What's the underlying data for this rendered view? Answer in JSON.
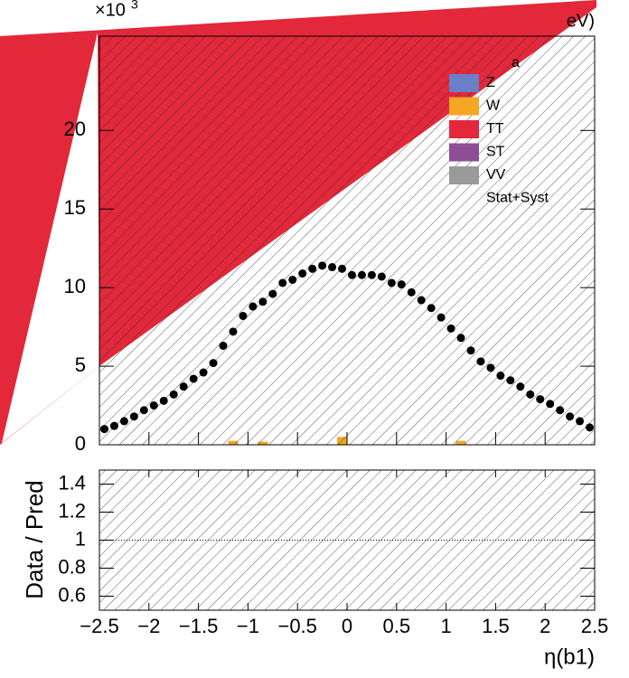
{
  "chart_data": {
    "type": "scatter",
    "y_multiplier": "×10",
    "y_multiplier_exp": "3",
    "corner_text": "eV)",
    "legend_fragment": "a",
    "x": [
      -2.45,
      -2.35,
      -2.25,
      -2.15,
      -2.05,
      -1.95,
      -1.85,
      -1.75,
      -1.65,
      -1.55,
      -1.45,
      -1.35,
      -1.25,
      -1.15,
      -1.05,
      -0.95,
      -0.85,
      -0.75,
      -0.65,
      -0.55,
      -0.45,
      -0.35,
      -0.25,
      -0.15,
      -0.05,
      0.05,
      0.15,
      0.25,
      0.35,
      0.45,
      0.55,
      0.65,
      0.75,
      0.85,
      0.95,
      1.05,
      1.15,
      1.25,
      1.35,
      1.45,
      1.55,
      1.65,
      1.75,
      1.85,
      1.95,
      2.05,
      2.15,
      2.25,
      2.35,
      2.45
    ],
    "values": [
      1.0,
      1.2,
      1.5,
      1.8,
      2.2,
      2.5,
      2.8,
      3.2,
      3.7,
      4.2,
      4.6,
      5.2,
      6.3,
      7.2,
      8.2,
      8.8,
      9.1,
      9.6,
      10.3,
      10.5,
      10.9,
      11.2,
      11.4,
      11.3,
      11.2,
      10.8,
      10.8,
      10.8,
      10.7,
      10.3,
      10.2,
      9.7,
      9.2,
      8.7,
      8.1,
      7.4,
      6.8,
      6.0,
      5.3,
      4.9,
      4.4,
      4.1,
      3.7,
      3.2,
      2.9,
      2.6,
      2.2,
      1.8,
      1.5,
      1.1
    ],
    "marker_color": "#000000",
    "w_values": [
      0,
      0,
      0,
      0,
      0,
      0,
      0,
      0,
      0,
      0,
      0,
      0,
      0,
      0.25,
      0,
      0,
      0.2,
      0,
      0,
      0,
      0,
      0,
      0,
      0,
      0.5,
      0,
      0,
      0,
      0,
      0,
      0,
      0,
      0,
      0,
      0,
      0,
      0.25,
      0,
      0,
      0,
      0,
      0,
      0,
      0,
      0,
      0,
      0,
      0,
      0,
      0
    ],
    "w_color": "#f5a623",
    "xlim": [
      -2.5,
      2.5
    ],
    "ylim": [
      0,
      26
    ],
    "yticks": [
      0,
      5,
      10,
      15,
      20
    ],
    "legend": [
      {
        "label": "Z",
        "color": "#6a7fc8"
      },
      {
        "label": "W",
        "color": "#f5a623"
      },
      {
        "label": "TT",
        "color": "#e2283a"
      },
      {
        "label": "ST",
        "color": "#8e4e96"
      },
      {
        "label": "VV",
        "color": "#9a9a9a"
      },
      {
        "label": "Stat+Syst",
        "color": "none"
      }
    ],
    "ratio": {
      "ylabel": "Data / Pred",
      "ylim": [
        0.5,
        1.5
      ],
      "yticks": [
        0.6,
        0.8,
        1,
        1.2,
        1.4
      ],
      "ref_line": 1
    },
    "xticks": [
      {
        "value": -2.5,
        "label": "−2.5"
      },
      {
        "value": -2,
        "label": "−2"
      },
      {
        "value": -1.5,
        "label": "−1.5"
      },
      {
        "value": -1,
        "label": "−1"
      },
      {
        "value": -0.5,
        "label": "−0.5"
      },
      0,
      0.5,
      1,
      1.5,
      2,
      2.5
    ],
    "xlabel": "η(b1)"
  }
}
